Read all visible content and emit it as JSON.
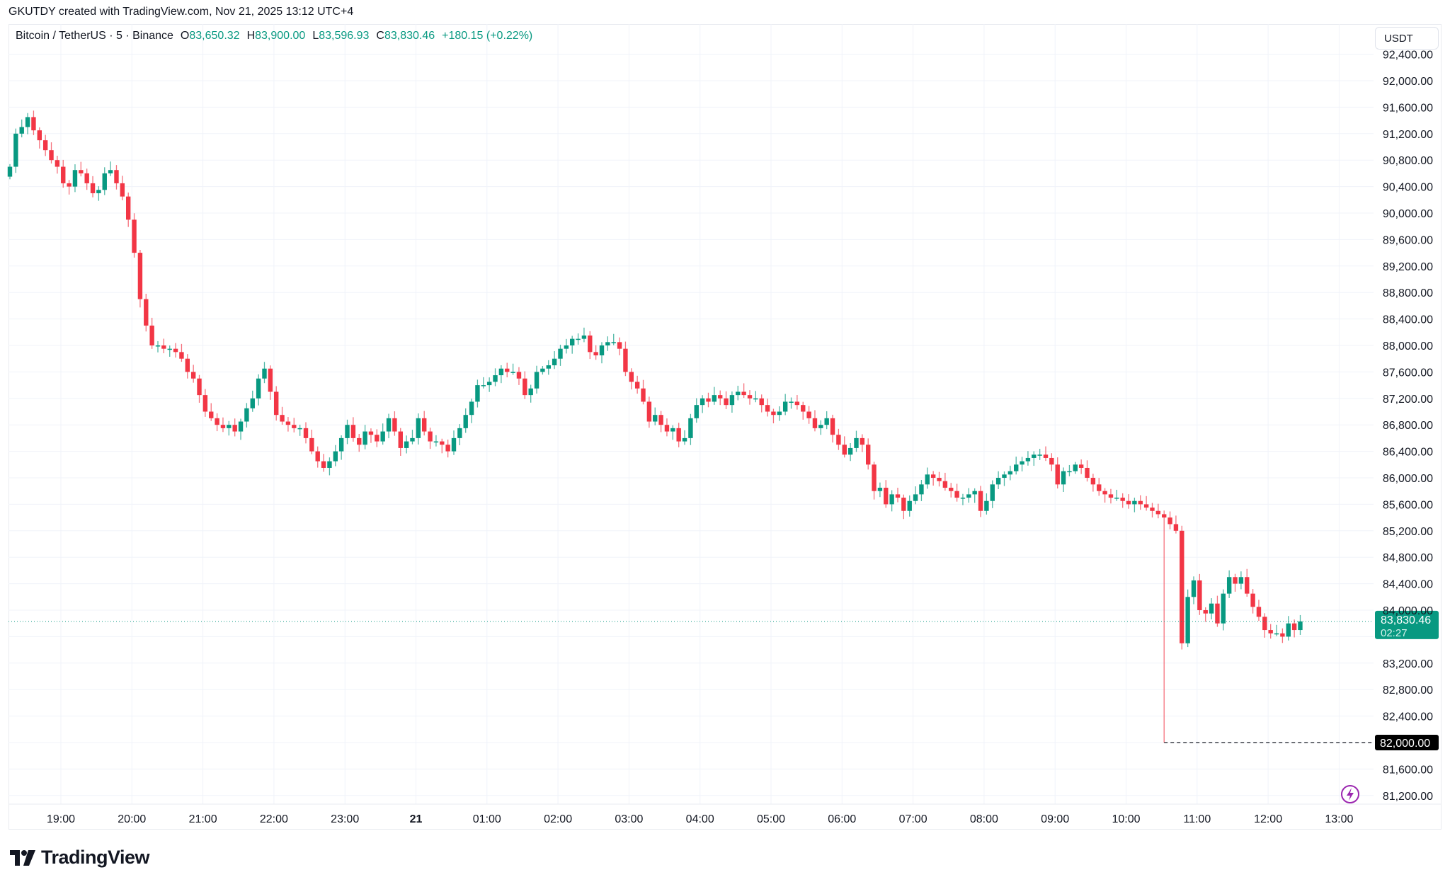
{
  "credit": "GKUTDY created with TradingView.com, Nov 21, 2025 13:12 UTC+4",
  "legend": {
    "symbol": "Bitcoin / TetherUS · 5 · Binance",
    "open_label": "O",
    "open": "83,650.32",
    "high_label": "H",
    "high": "83,900.00",
    "low_label": "L",
    "low": "83,596.93",
    "close_label": "C",
    "close": "83,830.46",
    "change": "+180.15 (+0.22%)"
  },
  "currency_button": "USDT",
  "price_tag": {
    "price": "83,830.46",
    "countdown": "02:27",
    "value": 83830.46,
    "color": "#089981"
  },
  "low_marker": {
    "price": "82,000.00",
    "value": 82000
  },
  "logo": {
    "text": "TradingView",
    "icon": "tradingview-logo-icon"
  },
  "alert_icon": "lightning-icon",
  "colors": {
    "up": "#089981",
    "down": "#f23645",
    "grid": "#f0f3fa",
    "axis_text": "#131722",
    "alert": "#9c27b0"
  },
  "chart_data": {
    "type": "candlestick",
    "title": "Bitcoin / TetherUS · 5 · Binance",
    "xlabel": "",
    "ylabel": "USDT",
    "interval": "5m",
    "ylim": [
      81000,
      92500
    ],
    "y_ticks": [
      92400,
      92000,
      91600,
      91200,
      90800,
      90400,
      90000,
      89600,
      89200,
      88800,
      88400,
      88000,
      87600,
      87200,
      86800,
      86400,
      86000,
      85600,
      85200,
      84800,
      84400,
      84000,
      83200,
      82800,
      82400,
      81600,
      81200
    ],
    "y_tick_labels": [
      "92,400.00",
      "92,000.00",
      "91,600.00",
      "91,200.00",
      "90,800.00",
      "90,400.00",
      "90,000.00",
      "89,600.00",
      "89,200.00",
      "88,800.00",
      "88,400.00",
      "88,000.00",
      "87,600.00",
      "87,200.00",
      "86,800.00",
      "86,400.00",
      "86,000.00",
      "85,600.00",
      "85,200.00",
      "84,800.00",
      "84,400.00",
      "84,000.00",
      "83,200.00",
      "82,800.00",
      "82,400.00",
      "81,600.00",
      "81,200.00"
    ],
    "x_ticks": [
      "19:00",
      "20:00",
      "21:00",
      "22:00",
      "23:00",
      "21",
      "01:00",
      "02:00",
      "03:00",
      "04:00",
      "05:00",
      "06:00",
      "07:00",
      "08:00",
      "09:00",
      "10:00",
      "11:00",
      "12:00",
      "13:00"
    ],
    "grid": true,
    "last_price": 83830.46,
    "session_low": 82000,
    "closes": [
      90700,
      91200,
      91300,
      91450,
      91250,
      91100,
      90950,
      90800,
      90700,
      90450,
      90400,
      90650,
      90600,
      90450,
      90300,
      90350,
      90600,
      90650,
      90450,
      90250,
      89900,
      89400,
      88700,
      88300,
      88000,
      88000,
      87950,
      87950,
      87900,
      87800,
      87600,
      87500,
      87250,
      87000,
      86900,
      86800,
      86750,
      86800,
      86700,
      86850,
      87050,
      87200,
      87500,
      87650,
      87300,
      86950,
      86850,
      86800,
      86750,
      86750,
      86600,
      86400,
      86250,
      86150,
      86250,
      86400,
      86600,
      86800,
      86600,
      86500,
      86700,
      86650,
      86550,
      86700,
      86900,
      86700,
      86450,
      86550,
      86600,
      86900,
      86700,
      86550,
      86550,
      86500,
      86400,
      86600,
      86750,
      86950,
      87150,
      87400,
      87400,
      87450,
      87550,
      87650,
      87600,
      87600,
      87500,
      87250,
      87350,
      87600,
      87650,
      87700,
      87800,
      87950,
      88000,
      88100,
      88100,
      88150,
      87900,
      87850,
      88000,
      88050,
      88050,
      87950,
      87600,
      87450,
      87350,
      87150,
      86850,
      86950,
      86800,
      86700,
      86750,
      86550,
      86600,
      86900,
      87100,
      87200,
      87150,
      87250,
      87200,
      87100,
      87250,
      87300,
      87250,
      87200,
      87200,
      87100,
      87000,
      86950,
      87000,
      87150,
      87150,
      87100,
      87000,
      86900,
      86750,
      86800,
      86900,
      86650,
      86500,
      86350,
      86450,
      86600,
      86500,
      86200,
      85800,
      85850,
      85600,
      85750,
      85700,
      85500,
      85650,
      85750,
      85900,
      86050,
      86000,
      85950,
      85850,
      85800,
      85700,
      85700,
      85750,
      85800,
      85500,
      85650,
      85900,
      86000,
      86050,
      86100,
      86200,
      86250,
      86300,
      86350,
      86350,
      86300,
      86200,
      85900,
      86100,
      86100,
      86200,
      86150,
      86000,
      85900,
      85800,
      85750,
      85700,
      85700,
      85650,
      85600,
      85650,
      85600,
      85550,
      85500,
      85450,
      85400,
      85300,
      85200,
      83500,
      84200,
      84450,
      84000,
      83950,
      84100,
      83800,
      84250,
      84500,
      84400,
      84500,
      84250,
      84050,
      83900,
      83700,
      83650,
      83650,
      83600,
      83800,
      83700,
      83830
    ]
  }
}
